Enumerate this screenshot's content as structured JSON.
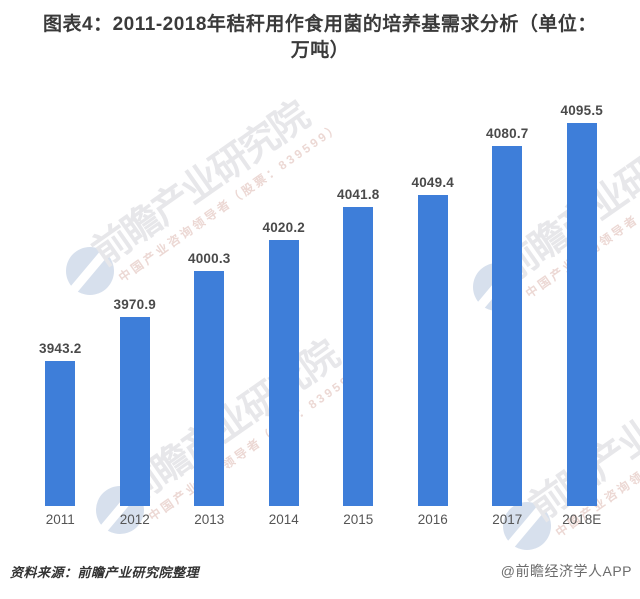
{
  "header": {
    "display_title": "图表4：2011-2018年秸秆用作食用菌的培养基需求分析（单位：\n万吨）"
  },
  "chart_data": {
    "type": "bar",
    "title": "图表4：2011-2018年秸秆用作食用菌的培养基需求分析（单位：万吨）",
    "unit": "万吨",
    "categories": [
      "2011",
      "2012",
      "2013",
      "2014",
      "2015",
      "2016",
      "2017",
      "2018E"
    ],
    "values": [
      3943.2,
      3970.9,
      4000.3,
      4020.2,
      4041.8,
      4049.4,
      4080.7,
      4095.5
    ],
    "xlabel": "",
    "ylabel": "",
    "ylim": [
      3850,
      4110
    ],
    "grid": false,
    "legend": false,
    "value_labels_shown": true,
    "bar_color": "#3e7ed9",
    "value_label_color": "#4a4a4a",
    "axis_label_color": "#555555"
  },
  "watermark": {
    "brand_text": "前瞻产业研究院",
    "sub_text": "中国产业咨询领导者（股票：839599）",
    "circle_color": "#d7e0ed",
    "brand_text_color": "#e7e7ea",
    "sub_text_color": "#ecd8d4"
  },
  "footer": {
    "source": "资料来源：前瞻产业研究院整理",
    "credit": "@前瞻经济学人APP"
  }
}
